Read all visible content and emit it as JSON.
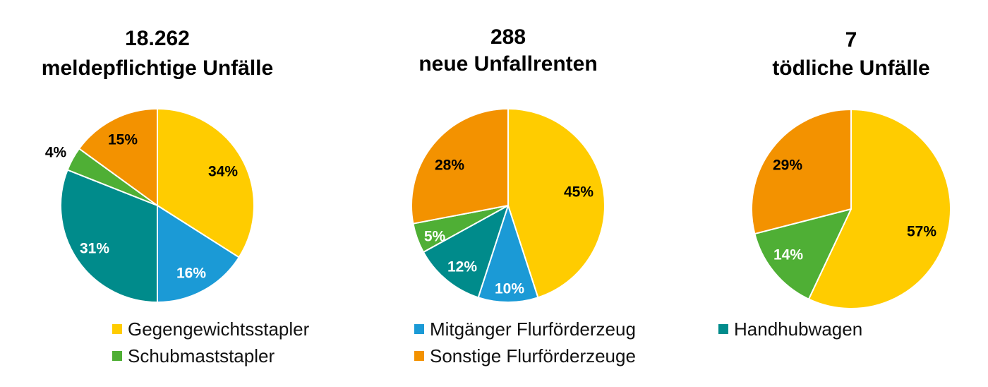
{
  "colors": {
    "Gegengewichtsstapler": "#FFCC00",
    "Mitgänger Flurförderzeug": "#1B9AD6",
    "Handhubwagen": "#008B8B",
    "Schubmaststapler": "#4FAF35",
    "Sonstige Flurförderzeuge": "#F39200"
  },
  "legend": [
    "Gegengewichtsstapler",
    "Mitgänger Flurförderzeug",
    "Handhubwagen",
    "Schubmaststapler",
    "Sonstige Flurförderzeuge"
  ],
  "chart_data": [
    {
      "type": "pie",
      "title": [
        "18.262",
        "meldepflichtige Unfälle"
      ],
      "slices": [
        {
          "category": "Gegengewichtsstapler",
          "value": 34,
          "label": "34%"
        },
        {
          "category": "Mitgänger Flurförderzeug",
          "value": 16,
          "label": "16%"
        },
        {
          "category": "Handhubwagen",
          "value": 31,
          "label": "31%"
        },
        {
          "category": "Schubmaststapler",
          "value": 4,
          "label": "4%"
        },
        {
          "category": "Sonstige Flurförderzeuge",
          "value": 15,
          "label": "15%"
        }
      ]
    },
    {
      "type": "pie",
      "title": [
        "288",
        "neue Unfallrenten"
      ],
      "slices": [
        {
          "category": "Gegengewichtsstapler",
          "value": 45,
          "label": "45%"
        },
        {
          "category": "Mitgänger Flurförderzeug",
          "value": 10,
          "label": "10%"
        },
        {
          "category": "Handhubwagen",
          "value": 12,
          "label": "12%"
        },
        {
          "category": "Schubmaststapler",
          "value": 5,
          "label": "5%"
        },
        {
          "category": "Sonstige Flurförderzeuge",
          "value": 28,
          "label": "28%"
        }
      ]
    },
    {
      "type": "pie",
      "title": [
        "7",
        "tödliche Unfälle"
      ],
      "slices": [
        {
          "category": "Gegengewichtsstapler",
          "value": 57,
          "label": "57%"
        },
        {
          "category": "Schubmaststapler",
          "value": 14,
          "label": "14%"
        },
        {
          "category": "Sonstige Flurförderzeuge",
          "value": 29,
          "label": "29%"
        }
      ]
    }
  ]
}
